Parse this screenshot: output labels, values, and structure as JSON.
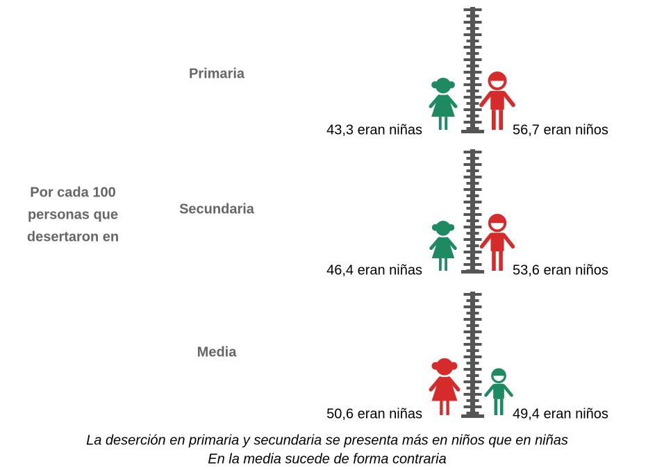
{
  "intro": [
    "Por cada 100",
    "personas que",
    "desertaron en"
  ],
  "rows": [
    {
      "level": "Primaria",
      "girls": "43,3 eran niñas",
      "boys": "56,7 eran niños"
    },
    {
      "level": "Secundaria",
      "girls": "46,4 eran niñas",
      "boys": "53,6 eran niños"
    },
    {
      "level": "Media",
      "girls": "50,6 eran niñas",
      "boys": "49,4 eran niños"
    }
  ],
  "caption": [
    "La deserción en primaria y secundaria se presenta más en niños que en niñas",
    "En la media sucede de forma contraria"
  ]
}
